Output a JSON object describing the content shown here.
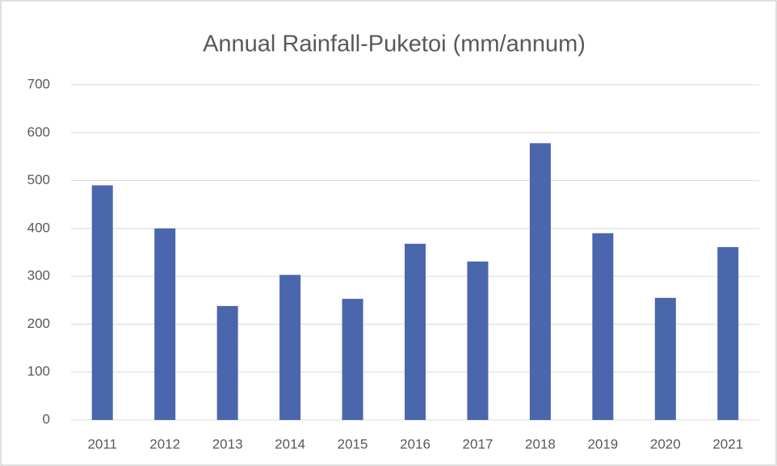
{
  "chart_data": {
    "type": "bar",
    "title": "Annual Rainfall-Puketoi (mm/annum)",
    "categories": [
      "2011",
      "2012",
      "2013",
      "2014",
      "2015",
      "2016",
      "2017",
      "2018",
      "2019",
      "2020",
      "2021"
    ],
    "values": [
      490,
      400,
      238,
      303,
      253,
      368,
      331,
      578,
      390,
      255,
      361
    ],
    "color": "#4a66ac",
    "ylim": [
      0,
      700
    ],
    "yticks": [
      0,
      100,
      200,
      300,
      400,
      500,
      600,
      700
    ],
    "grid": true
  }
}
